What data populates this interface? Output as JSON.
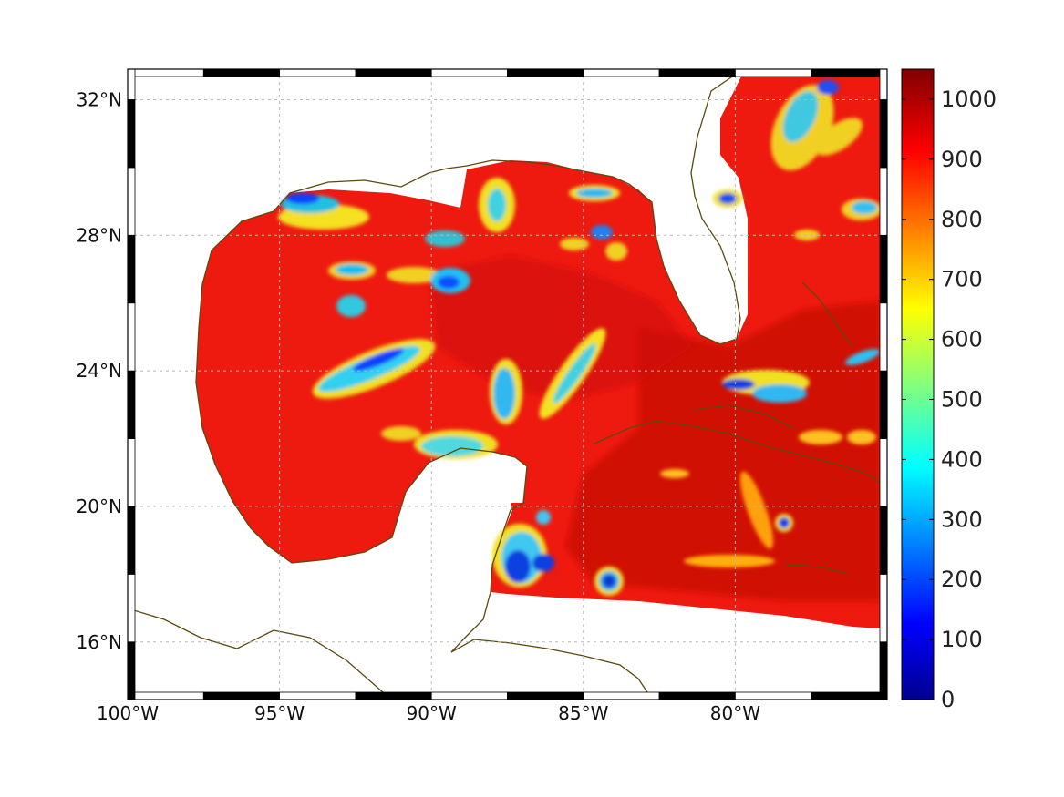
{
  "map": {
    "lon_range": [
      -100,
      -75
    ],
    "lat_range": [
      14.3,
      32.9
    ],
    "x_ticks": [
      {
        "lon": -100,
        "label": "100°W"
      },
      {
        "lon": -95,
        "label": "95°W"
      },
      {
        "lon": -90,
        "label": "90°W"
      },
      {
        "lon": -85,
        "label": "85°W"
      },
      {
        "lon": -80,
        "label": "80°W"
      }
    ],
    "y_ticks": [
      {
        "lat": 32,
        "label": "32°N"
      },
      {
        "lat": 28,
        "label": "28°N"
      },
      {
        "lat": 24,
        "label": "24°N"
      },
      {
        "lat": 20,
        "label": "20°N"
      },
      {
        "lat": 16,
        "label": "16°N"
      }
    ],
    "grid": true,
    "coastline_color": "#5a4a10",
    "frame_style": "alternating black and white border"
  },
  "colorbar": {
    "colormap": "jet",
    "range": [
      0,
      1050
    ],
    "ticks": [
      {
        "value": 0,
        "label": "0"
      },
      {
        "value": 100,
        "label": "100"
      },
      {
        "value": 200,
        "label": "200"
      },
      {
        "value": 300,
        "label": "300"
      },
      {
        "value": 400,
        "label": "400"
      },
      {
        "value": 500,
        "label": "500"
      },
      {
        "value": 600,
        "label": "600"
      },
      {
        "value": 700,
        "label": "700"
      },
      {
        "value": 800,
        "label": "800"
      },
      {
        "value": 900,
        "label": "900"
      },
      {
        "value": 1000,
        "label": "1000"
      }
    ]
  }
}
